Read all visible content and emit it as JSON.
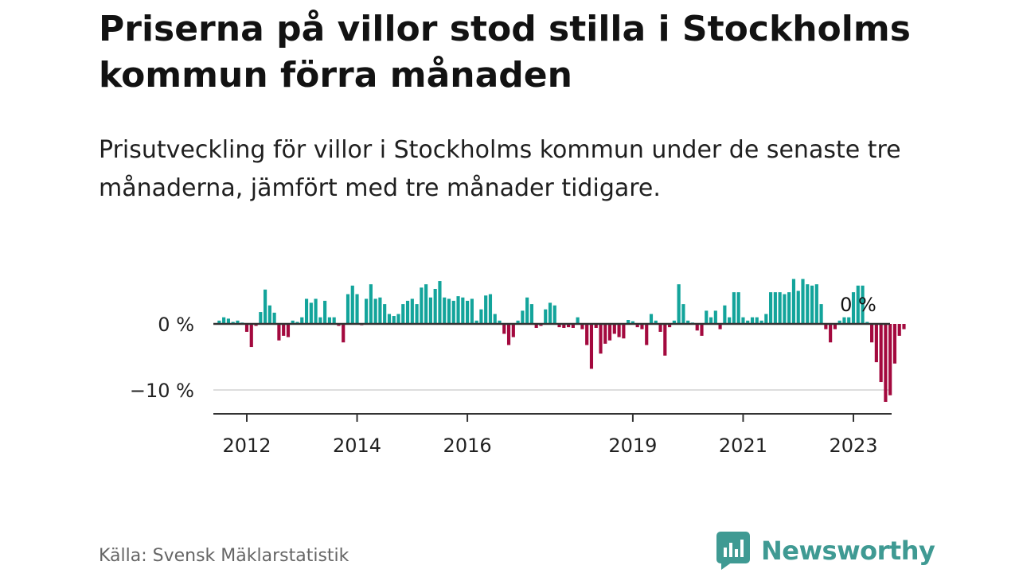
{
  "title": "Priserna på villor stod stilla i Stockholms kommun förra månaden",
  "subtitle": "Prisutveckling för villor i Stockholms kommun under de senaste tre månaderna, jämfört med tre månader tidigare.",
  "source": "Källa: Svensk Mäklarstatistik",
  "brand": {
    "name": "Newsworthy",
    "icon": "newsworthy-logo-icon"
  },
  "colors": {
    "positive": "#13a49b",
    "negative": "#a3093e",
    "axis": "#333333",
    "grid": "#dddddd",
    "brand": "#3f9a93"
  },
  "chart_data": {
    "type": "bar",
    "title": "",
    "xlabel": "",
    "ylabel": "",
    "unit": "%",
    "ylim": [
      -14,
      7
    ],
    "yticks": [
      {
        "value": 0,
        "label": "0 %"
      },
      {
        "value": -10,
        "label": "−10 %"
      }
    ],
    "xticks": [
      {
        "value": "2012-01",
        "label": "2012"
      },
      {
        "value": "2014-01",
        "label": "2014"
      },
      {
        "value": "2016-01",
        "label": "2016"
      },
      {
        "value": "2019-01",
        "label": "2019"
      },
      {
        "value": "2021-01",
        "label": "2021"
      },
      {
        "value": "2023-01",
        "label": "2023"
      }
    ],
    "x_start": "2011-07",
    "annotation": {
      "label": "0 %",
      "value": 0,
      "date": "2023-01"
    },
    "values": [
      0.5,
      1.0,
      0.8,
      0.3,
      0.5,
      0.2,
      -1.2,
      -3.5,
      -0.3,
      1.8,
      5.2,
      2.8,
      1.7,
      -2.5,
      -1.8,
      -2.0,
      0.5,
      0.3,
      1.0,
      3.8,
      3.2,
      3.8,
      1.0,
      3.5,
      1.0,
      1.0,
      -0.3,
      -2.8,
      4.5,
      5.8,
      4.5,
      -0.2,
      3.8,
      6.0,
      3.8,
      4.0,
      3.0,
      1.5,
      1.2,
      1.5,
      3.0,
      3.5,
      3.8,
      3.0,
      5.5,
      6.0,
      4.0,
      5.3,
      6.5,
      4.0,
      3.8,
      3.5,
      4.2,
      4.0,
      3.5,
      3.8,
      0.5,
      2.2,
      4.3,
      4.5,
      1.5,
      0.5,
      -1.5,
      -3.2,
      -2.0,
      0.5,
      2.0,
      4.0,
      3.0,
      -0.6,
      -0.3,
      2.2,
      3.2,
      2.8,
      -0.5,
      -0.6,
      -0.5,
      -0.6,
      1.0,
      -0.8,
      -3.2,
      -6.8,
      -0.6,
      -4.5,
      -3.0,
      -2.5,
      -1.5,
      -2.0,
      -2.2,
      0.6,
      0.4,
      -0.5,
      -0.8,
      -3.2,
      1.5,
      0.5,
      -1.2,
      -4.8,
      -0.5,
      0.5,
      6.0,
      3.0,
      0.5,
      0.2,
      -1.0,
      -1.8,
      2.0,
      1.0,
      2.0,
      -0.8,
      2.8,
      1.0,
      4.8,
      4.8,
      1.0,
      0.5,
      1.0,
      1.0,
      0.5,
      1.5,
      4.8,
      4.8,
      4.8,
      4.5,
      4.8,
      6.8,
      5.0,
      6.8,
      6.0,
      5.8,
      6.0,
      3.0,
      -0.8,
      -2.8,
      -0.8,
      0.5,
      1.0,
      1.0,
      4.8,
      5.8,
      5.8,
      0.3,
      -2.8,
      -5.8,
      -8.8,
      -11.8,
      -10.8,
      -6.0,
      -1.8,
      -0.8,
      0.0
    ]
  }
}
